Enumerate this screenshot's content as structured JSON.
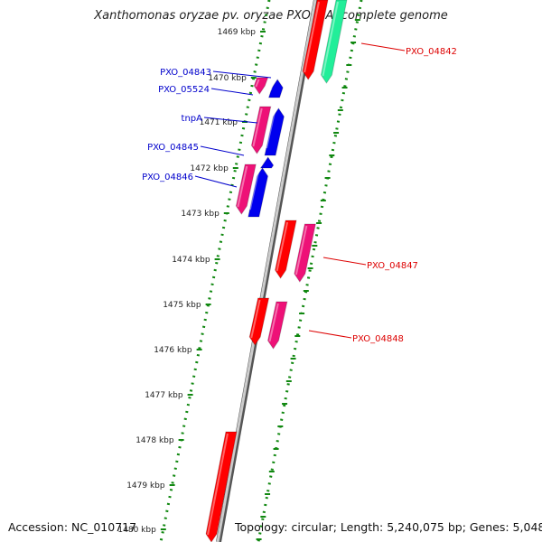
{
  "title": "Xanthomonas oryzae pv. oryzae PXO99A, complete genome",
  "accession": "Accession: NC_010717",
  "topology": "Topology: circular; Length: 5,240,075 bp; Genes: 5,048",
  "colors": {
    "red": "#ff0000",
    "magenta": "#ee1177",
    "blue": "#0000ee",
    "green": "#22ee99",
    "axis": "#888888",
    "tick": "#118811",
    "label_forward": "#dd0000",
    "label_reverse": "#0000cc"
  },
  "ticks": [
    "1469 kbp",
    "1470 kbp",
    "1471 kbp",
    "1472 kbp",
    "1473 kbp",
    "1474 kbp",
    "1475 kbp",
    "1476 kbp",
    "1477 kbp",
    "1478 kbp",
    "1479 kbp",
    "1480 kbp"
  ],
  "gene_labels_reverse": [
    "PXO_04843",
    "PXO_05524",
    "tnpA",
    "PXO_04845",
    "PXO_04846"
  ],
  "gene_labels_forward": [
    "PXO_04842",
    "PXO_04847",
    "PXO_04848"
  ]
}
